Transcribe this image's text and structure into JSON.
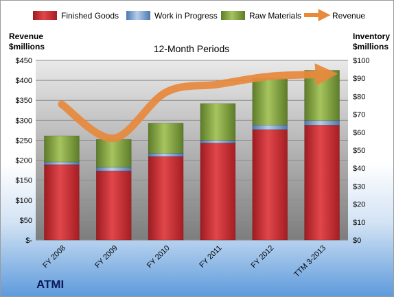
{
  "company": "ATMI",
  "chart_data": {
    "type": "bar",
    "stacked": true,
    "title": "12-Month Periods",
    "ylabel_left": "Revenue\n$millions",
    "ylabel_right": "Inventory\n$millions",
    "categories": [
      "FY 2008",
      "FY 2009",
      "FY 2010",
      "FY 2011",
      "FY 2012",
      "TTM 3-2013"
    ],
    "left_axis": {
      "ylim": [
        0,
        450
      ],
      "ticks": [
        "$-",
        "$50",
        "$100",
        "$150",
        "$200",
        "$250",
        "$300",
        "$350",
        "$400",
        "$450"
      ]
    },
    "right_axis": {
      "ylim": [
        0,
        100
      ],
      "ticks": [
        "$0",
        "$10",
        "$20",
        "$30",
        "$40",
        "$50",
        "$60",
        "$70",
        "$80",
        "$90",
        "$100"
      ]
    },
    "series": [
      {
        "name": "Finished Goods",
        "axis": "right",
        "color": "#c0282d",
        "values": [
          42,
          38.5,
          46.5,
          54,
          61.5,
          64
        ]
      },
      {
        "name": "Work in Progress",
        "axis": "right",
        "color": "#6f9bd1",
        "values": [
          1.5,
          2,
          1.8,
          1.5,
          2.5,
          2.5
        ]
      },
      {
        "name": "Raw Materials",
        "axis": "right",
        "color": "#7e9f3c",
        "values": [
          14.5,
          15.5,
          16.8,
          20.5,
          26,
          28
        ]
      },
      {
        "name": "Revenue",
        "axis": "left",
        "type": "line",
        "color": "#e8893c",
        "values": [
          340,
          255,
          370,
          390,
          410,
          415
        ]
      }
    ],
    "legend_position": "top",
    "grid": true
  }
}
